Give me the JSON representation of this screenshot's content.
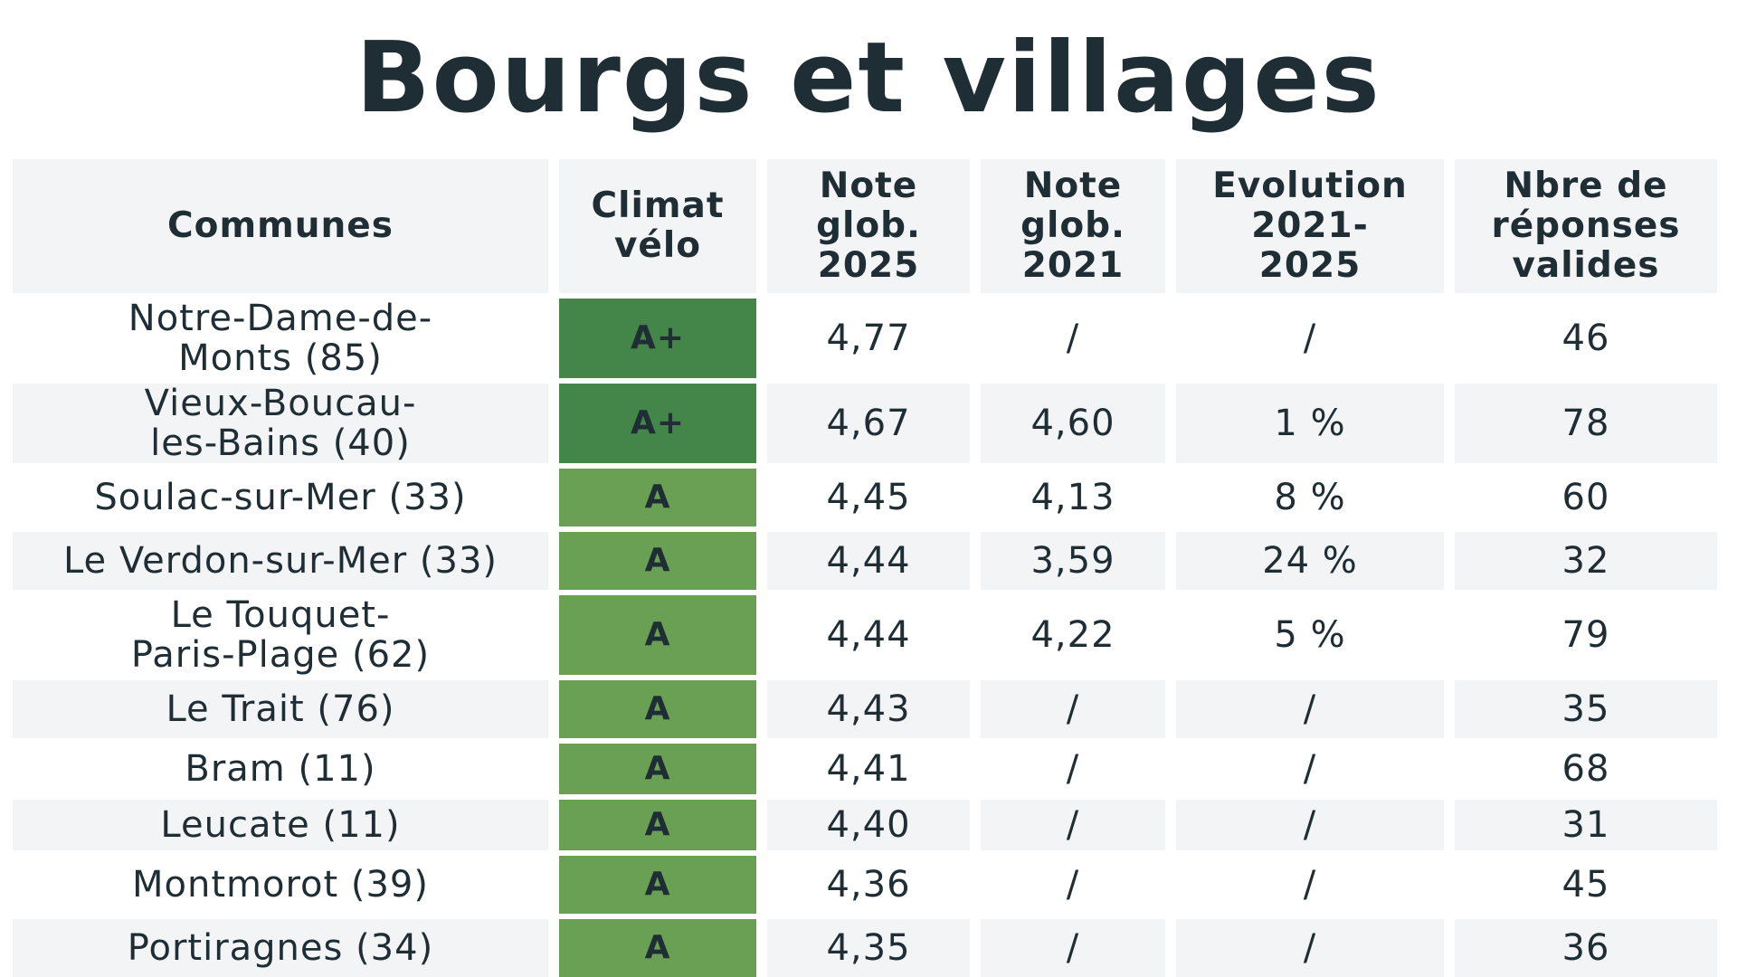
{
  "title": "Bourgs et villages",
  "headers": {
    "communes": "Communes",
    "climat_1": "Climat",
    "climat_2": "vélo",
    "note25_1": "Note",
    "note25_2": "glob.",
    "note25_3": "2025",
    "note21_1": "Note",
    "note21_2": "glob.",
    "note21_3": "2021",
    "evol_1": "Evolution",
    "evol_2": "2021-",
    "evol_3": "2025",
    "rep_1": "Nbre de",
    "rep_2": "réponses",
    "rep_3": "valides"
  },
  "rows": [
    {
      "commune_1": "Notre-Dame-de-",
      "commune_2": "Monts (85)",
      "climat": "A+",
      "note_2025": "4,77",
      "note_2021": "/",
      "evolution": "/",
      "reponses": "46"
    },
    {
      "commune_1": "Vieux-Boucau-",
      "commune_2": "les-Bains (40)",
      "climat": "A+",
      "note_2025": "4,67",
      "note_2021": "4,60",
      "evolution": "1 %",
      "reponses": "78"
    },
    {
      "commune_1": "Soulac-sur-Mer (33)",
      "commune_2": "",
      "climat": "A",
      "note_2025": "4,45",
      "note_2021": "4,13",
      "evolution": "8 %",
      "reponses": "60"
    },
    {
      "commune_1": "Le Verdon-sur-Mer (33)",
      "commune_2": "",
      "climat": "A",
      "note_2025": "4,44",
      "note_2021": "3,59",
      "evolution": "24 %",
      "reponses": "32"
    },
    {
      "commune_1": "Le Touquet-",
      "commune_2": "Paris-Plage (62)",
      "climat": "A",
      "note_2025": "4,44",
      "note_2021": "4,22",
      "evolution": "5 %",
      "reponses": "79"
    },
    {
      "commune_1": "Le Trait (76)",
      "commune_2": "",
      "climat": "A",
      "note_2025": "4,43",
      "note_2021": "/",
      "evolution": "/",
      "reponses": "35"
    },
    {
      "commune_1": "Bram (11)",
      "commune_2": "",
      "climat": "A",
      "note_2025": "4,41",
      "note_2021": "/",
      "evolution": "/",
      "reponses": "68"
    },
    {
      "commune_1": "Leucate (11)",
      "commune_2": "",
      "climat": "A",
      "note_2025": "4,40",
      "note_2021": "/",
      "evolution": "/",
      "reponses": "31"
    },
    {
      "commune_1": "Montmorot (39)",
      "commune_2": "",
      "climat": "A",
      "note_2025": "4,36",
      "note_2021": "/",
      "evolution": "/",
      "reponses": "45"
    },
    {
      "commune_1": "Portiragnes (34)",
      "commune_2": "",
      "climat": "A",
      "note_2025": "4,35",
      "note_2021": "/",
      "evolution": "/",
      "reponses": "36"
    }
  ],
  "colors": {
    "grade_aplus": "#44864a",
    "grade_a": "#6aa053",
    "text": "#1f2d35",
    "row_shade": "#f3f4f5"
  }
}
